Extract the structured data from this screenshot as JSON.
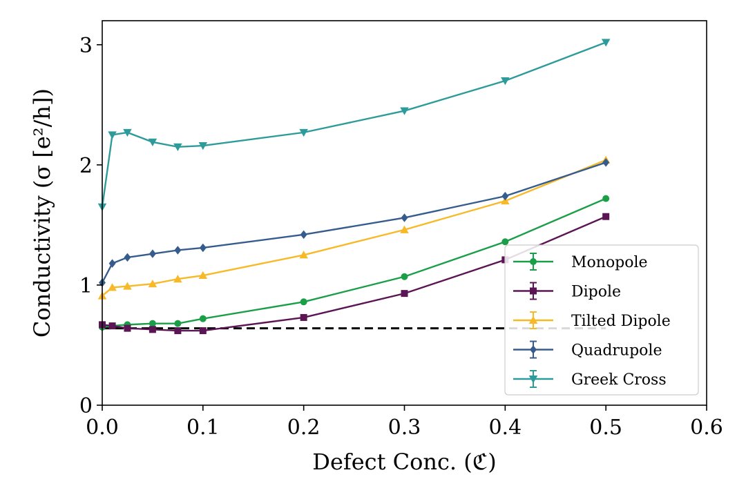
{
  "chart_data": {
    "type": "line",
    "xlabel": "Defect Conc. (ℭ)",
    "ylabel": "Conductivity (σ [e²/h])",
    "xlim": [
      0.0,
      0.6
    ],
    "ylim": [
      0,
      3.2
    ],
    "xticks": [
      0.0,
      0.1,
      0.2,
      0.3,
      0.4,
      0.5,
      0.6
    ],
    "xtick_labels": [
      "0.0",
      "0.1",
      "0.2",
      "0.3",
      "0.4",
      "0.5",
      "0.6"
    ],
    "yticks": [
      0,
      1,
      2,
      3
    ],
    "ytick_labels": [
      "0",
      "1",
      "2",
      "3"
    ],
    "grid": false,
    "legend_position": "lower-right",
    "reference_line": {
      "y": 0.64,
      "x_start": 0.0,
      "x_end": 0.5,
      "style": "dashed",
      "color": "#000000"
    },
    "series": [
      {
        "name": "Monopole",
        "color": "#1a9e48",
        "marker": "circle",
        "x": [
          0.0,
          0.01,
          0.025,
          0.05,
          0.075,
          0.1,
          0.2,
          0.3,
          0.4,
          0.5
        ],
        "y": [
          0.65,
          0.66,
          0.67,
          0.68,
          0.68,
          0.72,
          0.86,
          1.07,
          1.36,
          1.72
        ]
      },
      {
        "name": "Dipole",
        "color": "#5b1554",
        "marker": "square",
        "x": [
          0.0,
          0.01,
          0.025,
          0.05,
          0.075,
          0.1,
          0.2,
          0.3,
          0.4,
          0.5
        ],
        "y": [
          0.67,
          0.66,
          0.64,
          0.63,
          0.62,
          0.62,
          0.73,
          0.93,
          1.21,
          1.57
        ]
      },
      {
        "name": "Tilted Dipole",
        "color": "#f7b927",
        "marker": "triangle-up",
        "x": [
          0.0,
          0.01,
          0.025,
          0.05,
          0.075,
          0.1,
          0.2,
          0.3,
          0.4,
          0.5
        ],
        "y": [
          0.91,
          0.98,
          0.99,
          1.01,
          1.05,
          1.08,
          1.25,
          1.46,
          1.7,
          2.04
        ]
      },
      {
        "name": "Quadrupole",
        "color": "#365c8d",
        "marker": "diamond",
        "x": [
          0.0,
          0.01,
          0.025,
          0.05,
          0.075,
          0.1,
          0.2,
          0.3,
          0.4,
          0.5
        ],
        "y": [
          1.02,
          1.18,
          1.23,
          1.26,
          1.29,
          1.31,
          1.42,
          1.56,
          1.74,
          2.02
        ]
      },
      {
        "name": "Greek Cross",
        "color": "#2e9b9b",
        "marker": "triangle-down",
        "x": [
          0.0,
          0.01,
          0.025,
          0.05,
          0.075,
          0.1,
          0.2,
          0.3,
          0.4,
          0.5
        ],
        "y": [
          1.65,
          2.25,
          2.27,
          2.19,
          2.15,
          2.16,
          2.27,
          2.45,
          2.7,
          3.02
        ]
      }
    ]
  }
}
